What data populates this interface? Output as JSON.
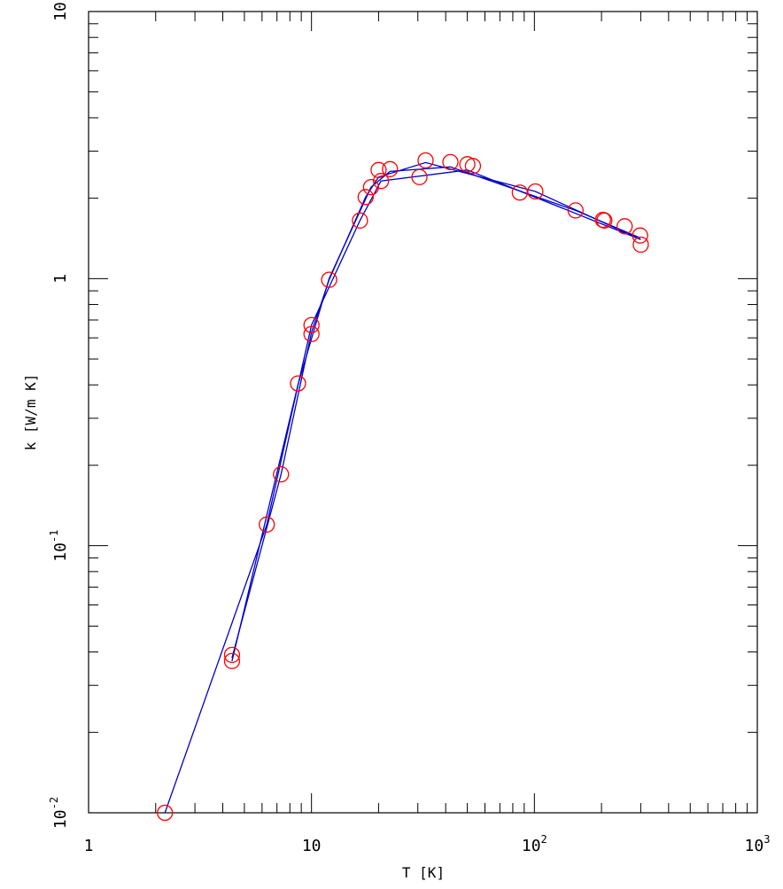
{
  "chart_data": {
    "type": "scatter",
    "title": "",
    "xlabel": "T [K]",
    "ylabel": "k [W/m K]",
    "xscale": "log",
    "yscale": "log",
    "xlim": [
      1,
      1000
    ],
    "ylim": [
      0.01,
      10
    ],
    "grid": false,
    "x_tick_labels": [
      {
        "value": 1,
        "base": "1",
        "exp": ""
      },
      {
        "value": 10,
        "base": "10",
        "exp": ""
      },
      {
        "value": 100,
        "base": "10",
        "exp": "2"
      },
      {
        "value": 1000,
        "base": "10",
        "exp": "3"
      }
    ],
    "y_tick_labels": [
      {
        "value": 0.01,
        "base": "10",
        "exp": "-2"
      },
      {
        "value": 0.1,
        "base": "10",
        "exp": "-1"
      },
      {
        "value": 1,
        "base": "1",
        "exp": ""
      },
      {
        "value": 10,
        "base": "10",
        "exp": ""
      }
    ],
    "colors": {
      "points": "#ff0000",
      "lines": "#0000cc",
      "axes": "#000000"
    },
    "points": [
      {
        "x": 2.2,
        "y": 0.01
      },
      {
        "x": 4.4,
        "y": 0.039
      },
      {
        "x": 4.4,
        "y": 0.037
      },
      {
        "x": 6.3,
        "y": 0.12
      },
      {
        "x": 7.3,
        "y": 0.185
      },
      {
        "x": 8.7,
        "y": 0.405
      },
      {
        "x": 10.0,
        "y": 0.67
      },
      {
        "x": 10.0,
        "y": 0.62
      },
      {
        "x": 12.0,
        "y": 0.99
      },
      {
        "x": 16.5,
        "y": 1.65
      },
      {
        "x": 17.5,
        "y": 2.02
      },
      {
        "x": 18.5,
        "y": 2.2
      },
      {
        "x": 20.0,
        "y": 2.55
      },
      {
        "x": 20.5,
        "y": 2.32
      },
      {
        "x": 22.5,
        "y": 2.57
      },
      {
        "x": 30.5,
        "y": 2.4
      },
      {
        "x": 32.5,
        "y": 2.77
      },
      {
        "x": 42.0,
        "y": 2.73
      },
      {
        "x": 50.0,
        "y": 2.68
      },
      {
        "x": 53.0,
        "y": 2.64
      },
      {
        "x": 86.0,
        "y": 2.1
      },
      {
        "x": 101.0,
        "y": 2.12
      },
      {
        "x": 153.0,
        "y": 1.8
      },
      {
        "x": 203.0,
        "y": 1.66
      },
      {
        "x": 206.0,
        "y": 1.65
      },
      {
        "x": 254.0,
        "y": 1.57
      },
      {
        "x": 298.0,
        "y": 1.45
      },
      {
        "x": 300.0,
        "y": 1.34
      }
    ],
    "series": [
      {
        "x": [
          2.2,
          6.3,
          10.0,
          16.5,
          20.5,
          50.0,
          300.0
        ],
        "y": [
          0.01,
          0.12,
          0.67,
          1.65,
          2.32,
          2.55,
          1.4
        ]
      },
      {
        "x": [
          4.4,
          7.3,
          10.0,
          12.0,
          17.5,
          20.0,
          32.5,
          101.0,
          300.0
        ],
        "y": [
          0.038,
          0.185,
          0.63,
          0.99,
          2.02,
          2.4,
          2.72,
          2.12,
          1.4
        ]
      },
      {
        "x": [
          4.4,
          8.7,
          12.0,
          18.5,
          22.5,
          42.0,
          153.0,
          298.0
        ],
        "y": [
          0.037,
          0.4,
          1.0,
          2.2,
          2.52,
          2.62,
          1.8,
          1.42
        ]
      }
    ]
  }
}
